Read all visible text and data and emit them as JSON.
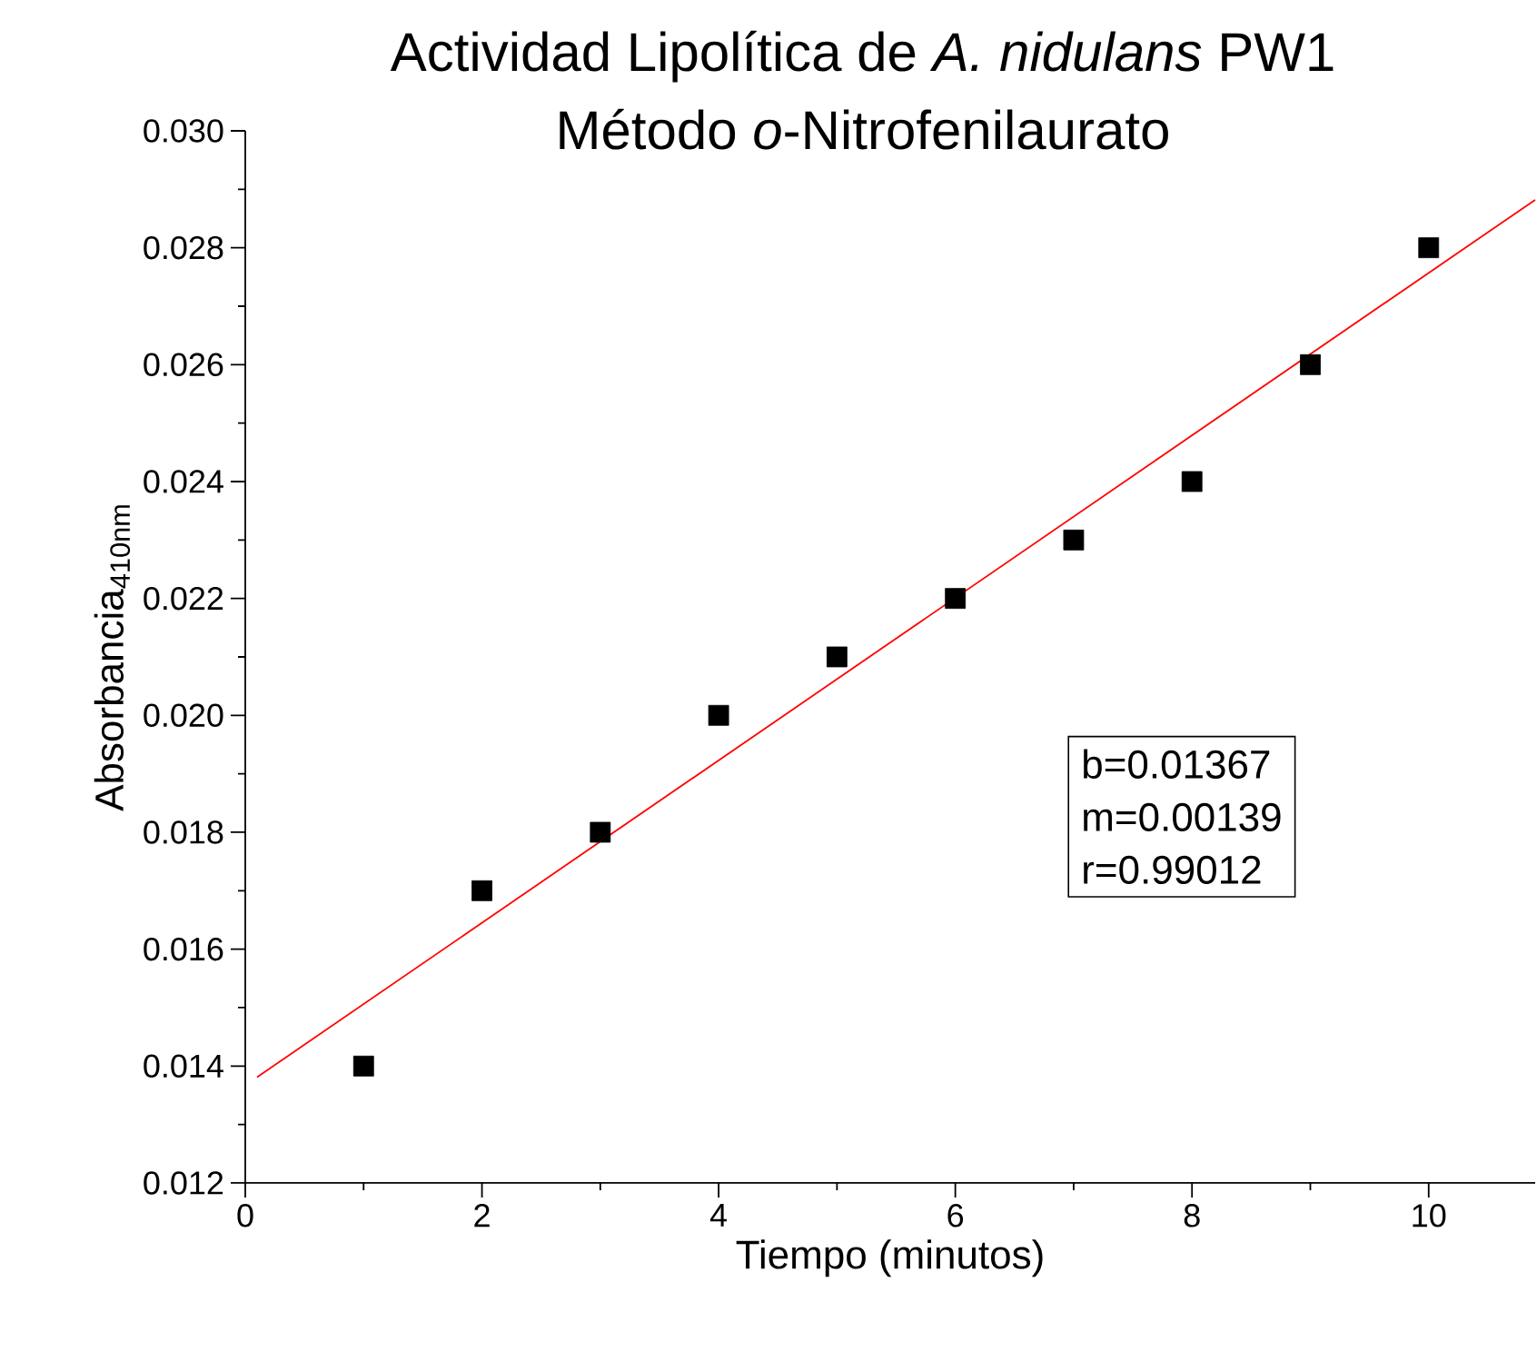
{
  "chart_data": {
    "type": "scatter",
    "title": "Actividad Lipolítica de *A. nidulans* PW1",
    "subtitle": "Método *o*-Nitrofenilaurato",
    "xlabel": "Tiempo (minutos)",
    "ylabel": "Absorbancia$_{410nm}$",
    "series": [
      {
        "color": "#000000",
        "marker": "square",
        "x": [
          1,
          2,
          3,
          4,
          5,
          6,
          7,
          8,
          9,
          10
        ],
        "values": [
          0.014,
          0.017,
          0.018,
          0.02,
          0.021,
          0.022,
          0.023,
          0.024,
          0.026,
          0.028
        ]
      },
      {
        "type": "line",
        "color": "#ff0000",
        "marker": "none",
        "line_style": "solid",
        "x": [
          0.1,
          10.9
        ],
        "values": [
          0.01381,
          0.02882
        ]
      }
    ],
    "xlim": [
      0,
      10.9
    ],
    "ylim": [
      0.012,
      0.03
    ],
    "xticks": [
      0,
      2,
      4,
      6,
      8,
      10
    ],
    "yticks": [
      {
        "value": 0.012,
        "label": "0.012"
      },
      {
        "value": 0.014,
        "label": "0.014"
      },
      {
        "value": 0.016,
        "label": "0.016"
      },
      {
        "value": 0.018,
        "label": "0.018"
      },
      {
        "value": 0.02,
        "label": "0.020"
      },
      {
        "value": 0.022,
        "label": "0.022"
      },
      {
        "value": 0.024,
        "label": "0.024"
      },
      {
        "value": 0.026,
        "label": "0.026"
      },
      {
        "value": 0.028,
        "label": "0.028"
      },
      {
        "value": 0.03,
        "label": "0.030"
      }
    ],
    "annotations": [
      "b=0.01367",
      "m=0.00139",
      "r=0.99012"
    ]
  }
}
